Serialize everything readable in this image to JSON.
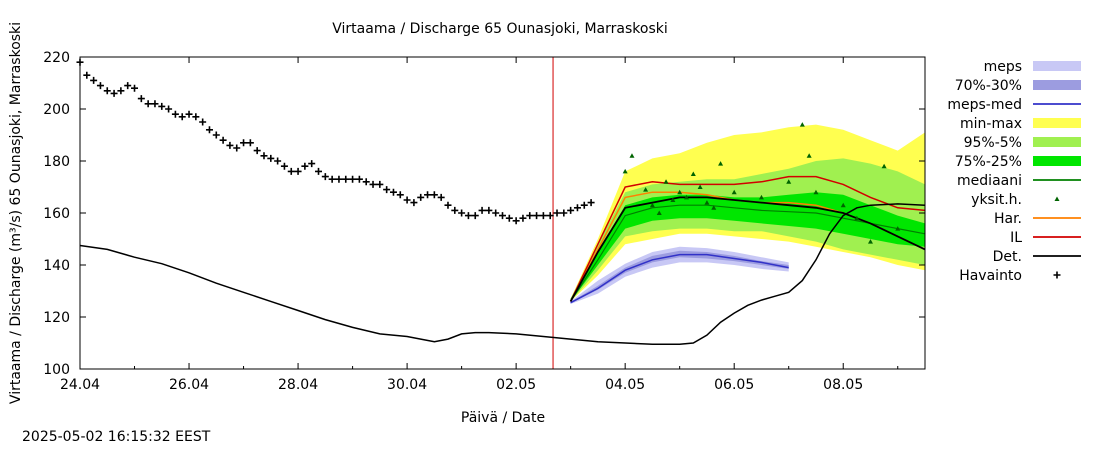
{
  "chart_data": {
    "type": "line",
    "title": "Virtaama / Discharge  65 Ounasjoki, Marraskoski",
    "xlabel": "Päivä / Date",
    "ylabel": "Virtaama / Discharge (m³/s)  65 Ounasjoki, Marraskoski",
    "ylim": [
      100,
      220
    ],
    "xlim": [
      "2025-04-24",
      "2025-05-09 12:00"
    ],
    "x_tick_labels": [
      "24.04",
      "26.04",
      "28.04",
      "30.04",
      "02.05",
      "04.05",
      "06.05",
      "08.05"
    ],
    "y_tick_labels": [
      "100",
      "120",
      "140",
      "160",
      "180",
      "200",
      "220"
    ],
    "grid": false,
    "legend_position": "right",
    "forecast_start": "2025-05-02 16:15",
    "legend": [
      {
        "label": "meps",
        "color": "#c8c8f5",
        "style": "band"
      },
      {
        "label": "70%-30%",
        "color": "#9c9ce0",
        "style": "band"
      },
      {
        "label": "meps-med",
        "color": "#3232c8",
        "style": "line"
      },
      {
        "label": "min-max",
        "color": "#ffff50",
        "style": "band"
      },
      {
        "label": "95%-5%",
        "color": "#a0f050",
        "style": "band"
      },
      {
        "label": "75%-25%",
        "color": "#00e600",
        "style": "band"
      },
      {
        "label": "mediaani",
        "color": "#008000",
        "style": "line"
      },
      {
        "label": "yksit.h.",
        "color": "#006400",
        "style": "triangle"
      },
      {
        "label": "Har.",
        "color": "#ff8000",
        "style": "line"
      },
      {
        "label": "IL",
        "color": "#d20000",
        "style": "line"
      },
      {
        "label": "Det.",
        "color": "#000000",
        "style": "line"
      },
      {
        "label": "Havainto",
        "color": "#000000",
        "style": "plus"
      }
    ],
    "series": [
      {
        "name": "Havainto",
        "kind": "observed",
        "points": [
          [
            "2025-04-24 00:00",
            218
          ],
          [
            "2025-04-24 03:00",
            213
          ],
          [
            "2025-04-24 06:00",
            211
          ],
          [
            "2025-04-24 09:00",
            209
          ],
          [
            "2025-04-24 12:00",
            207
          ],
          [
            "2025-04-24 15:00",
            206
          ],
          [
            "2025-04-24 18:00",
            207
          ],
          [
            "2025-04-24 21:00",
            209
          ],
          [
            "2025-04-25 00:00",
            208
          ],
          [
            "2025-04-25 03:00",
            204
          ],
          [
            "2025-04-25 06:00",
            202
          ],
          [
            "2025-04-25 09:00",
            202
          ],
          [
            "2025-04-25 12:00",
            201
          ],
          [
            "2025-04-25 15:00",
            200
          ],
          [
            "2025-04-25 18:00",
            198
          ],
          [
            "2025-04-25 21:00",
            197
          ],
          [
            "2025-04-26 00:00",
            198
          ],
          [
            "2025-04-26 03:00",
            197
          ],
          [
            "2025-04-26 06:00",
            195
          ],
          [
            "2025-04-26 09:00",
            192
          ],
          [
            "2025-04-26 12:00",
            190
          ],
          [
            "2025-04-26 15:00",
            188
          ],
          [
            "2025-04-26 18:00",
            186
          ],
          [
            "2025-04-26 21:00",
            185
          ],
          [
            "2025-04-27 00:00",
            187
          ],
          [
            "2025-04-27 03:00",
            187
          ],
          [
            "2025-04-27 06:00",
            184
          ],
          [
            "2025-04-27 09:00",
            182
          ],
          [
            "2025-04-27 12:00",
            181
          ],
          [
            "2025-04-27 15:00",
            180
          ],
          [
            "2025-04-27 18:00",
            178
          ],
          [
            "2025-04-27 21:00",
            176
          ],
          [
            "2025-04-28 00:00",
            176
          ],
          [
            "2025-04-28 03:00",
            178
          ],
          [
            "2025-04-28 06:00",
            179
          ],
          [
            "2025-04-28 09:00",
            176
          ],
          [
            "2025-04-28 12:00",
            174
          ],
          [
            "2025-04-28 15:00",
            173
          ],
          [
            "2025-04-28 18:00",
            173
          ],
          [
            "2025-04-28 21:00",
            173
          ],
          [
            "2025-04-29 00:00",
            173
          ],
          [
            "2025-04-29 03:00",
            173
          ],
          [
            "2025-04-29 06:00",
            172
          ],
          [
            "2025-04-29 09:00",
            171
          ],
          [
            "2025-04-29 12:00",
            171
          ],
          [
            "2025-04-29 15:00",
            169
          ],
          [
            "2025-04-29 18:00",
            168
          ],
          [
            "2025-04-29 21:00",
            167
          ],
          [
            "2025-04-30 00:00",
            165
          ],
          [
            "2025-04-30 03:00",
            164
          ],
          [
            "2025-04-30 06:00",
            166
          ],
          [
            "2025-04-30 09:00",
            167
          ],
          [
            "2025-04-30 12:00",
            167
          ],
          [
            "2025-04-30 15:00",
            166
          ],
          [
            "2025-04-30 18:00",
            163
          ],
          [
            "2025-04-30 21:00",
            161
          ],
          [
            "2025-05-01 00:00",
            160
          ],
          [
            "2025-05-01 03:00",
            159
          ],
          [
            "2025-05-01 06:00",
            159
          ],
          [
            "2025-05-01 09:00",
            161
          ],
          [
            "2025-05-01 12:00",
            161
          ],
          [
            "2025-05-01 15:00",
            160
          ],
          [
            "2025-05-01 18:00",
            159
          ],
          [
            "2025-05-01 21:00",
            158
          ],
          [
            "2025-05-02 00:00",
            157
          ],
          [
            "2025-05-02 03:00",
            158
          ],
          [
            "2025-05-02 06:00",
            159
          ],
          [
            "2025-05-02 09:00",
            159
          ],
          [
            "2025-05-02 12:00",
            159
          ],
          [
            "2025-05-02 15:00",
            159
          ],
          [
            "2025-05-02 18:00",
            160
          ],
          [
            "2025-05-02 21:00",
            160
          ],
          [
            "2025-05-03 00:00",
            161
          ],
          [
            "2025-05-03 03:00",
            162
          ],
          [
            "2025-05-03 06:00",
            163
          ],
          [
            "2025-05-03 09:00",
            164
          ]
        ]
      },
      {
        "name": "Det.",
        "kind": "line",
        "color": "#000000",
        "points": [
          [
            "2025-04-24 00:00",
            147.5
          ],
          [
            "2025-04-24 12:00",
            146
          ],
          [
            "2025-04-25 00:00",
            143
          ],
          [
            "2025-04-25 12:00",
            140.5
          ],
          [
            "2025-04-26 00:00",
            137
          ],
          [
            "2025-04-26 12:00",
            133
          ],
          [
            "2025-04-27 00:00",
            129.5
          ],
          [
            "2025-04-27 12:00",
            126
          ],
          [
            "2025-04-28 00:00",
            122.5
          ],
          [
            "2025-04-28 12:00",
            119
          ],
          [
            "2025-04-29 00:00",
            116
          ],
          [
            "2025-04-29 12:00",
            113.5
          ],
          [
            "2025-04-30 00:00",
            112.5
          ],
          [
            "2025-04-30 06:00",
            111.5
          ],
          [
            "2025-04-30 12:00",
            110.5
          ],
          [
            "2025-04-30 18:00",
            111.5
          ],
          [
            "2025-05-01 00:00",
            113.5
          ],
          [
            "2025-05-01 06:00",
            114
          ],
          [
            "2025-05-01 12:00",
            114
          ],
          [
            "2025-05-02 00:00",
            113.5
          ],
          [
            "2025-05-02 12:00",
            112.5
          ],
          [
            "2025-05-03 00:00",
            111.5
          ],
          [
            "2025-05-03 12:00",
            110.5
          ],
          [
            "2025-05-04 00:00",
            110
          ],
          [
            "2025-05-04 12:00",
            109.5
          ],
          [
            "2025-05-05 00:00",
            109.5
          ],
          [
            "2025-05-05 06:00",
            110
          ],
          [
            "2025-05-05 12:00",
            113
          ],
          [
            "2025-05-05 18:00",
            118
          ],
          [
            "2025-05-06 00:00",
            121.5
          ],
          [
            "2025-05-06 06:00",
            124.5
          ],
          [
            "2025-05-06 12:00",
            126.5
          ],
          [
            "2025-05-06 18:00",
            128
          ],
          [
            "2025-05-07 00:00",
            129.5
          ],
          [
            "2025-05-07 06:00",
            134
          ],
          [
            "2025-05-07 12:00",
            142
          ],
          [
            "2025-05-07 18:00",
            152
          ],
          [
            "2025-05-08 00:00",
            159
          ],
          [
            "2025-05-08 06:00",
            162
          ],
          [
            "2025-05-08 12:00",
            163
          ],
          [
            "2025-05-09 00:00",
            163.5
          ],
          [
            "2025-05-09 12:00",
            163
          ]
        ]
      }
    ]
  },
  "footer": {
    "timestamp": "2025-05-02 16:15:32 EEST"
  }
}
